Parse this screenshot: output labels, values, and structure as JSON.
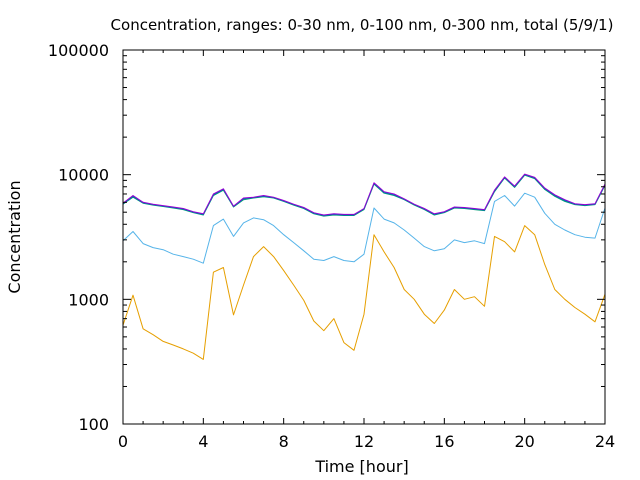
{
  "chart_data": {
    "type": "line",
    "title": "Concentration, ranges: 0-30 nm, 0-100 nm, 0-300 nm, total (5/9/1)",
    "xlabel": "Time [hour]",
    "ylabel": "Concentration",
    "xlim": [
      0,
      24
    ],
    "ylim": [
      100,
      100000
    ],
    "yscale": "log",
    "grid": false,
    "xticks": [
      0,
      4,
      8,
      12,
      16,
      20,
      24
    ],
    "xtick_labels": [
      "0",
      "4",
      "8",
      "12",
      "16",
      "20",
      "24"
    ],
    "yticks": [
      100,
      1000,
      10000,
      100000
    ],
    "ytick_labels": [
      "100",
      "1000",
      "10000",
      "100000"
    ],
    "x": [
      0,
      0.5,
      1,
      1.5,
      2,
      2.5,
      3,
      3.5,
      4,
      4.5,
      5,
      5.5,
      6,
      6.5,
      7,
      7.5,
      8,
      8.5,
      9,
      9.5,
      10,
      10.5,
      11,
      11.5,
      12,
      12.5,
      13,
      13.5,
      14,
      14.5,
      15,
      15.5,
      16,
      16.5,
      17,
      17.5,
      18,
      18.5,
      19,
      19.5,
      20,
      20.5,
      21,
      21.5,
      22,
      22.5,
      23,
      23.5,
      24
    ],
    "series": [
      {
        "color": "#E69F00",
        "values": [
          620,
          1080,
          580,
          520,
          460,
          430,
          400,
          370,
          330,
          1650,
          1800,
          750,
          1300,
          2200,
          2650,
          2200,
          1700,
          1300,
          980,
          670,
          560,
          700,
          450,
          390,
          760,
          3300,
          2400,
          1800,
          1200,
          1000,
          760,
          640,
          820,
          1200,
          1000,
          1050,
          880,
          3200,
          2900,
          2400,
          3900,
          3300,
          1900,
          1200,
          1000,
          860,
          760,
          660,
          1100
        ]
      },
      {
        "color": "#56B4E9",
        "values": [
          2950,
          3500,
          2800,
          2600,
          2500,
          2300,
          2200,
          2100,
          1950,
          3900,
          4400,
          3200,
          4100,
          4500,
          4350,
          3900,
          3300,
          2850,
          2450,
          2100,
          2050,
          2200,
          2050,
          2000,
          2300,
          5400,
          4400,
          4100,
          3600,
          3100,
          2650,
          2450,
          2550,
          3000,
          2850,
          2950,
          2800,
          6100,
          6800,
          5600,
          7100,
          6600,
          4900,
          4000,
          3600,
          3300,
          3150,
          3100,
          5400
        ]
      },
      {
        "color": "#009E73",
        "values": [
          5800,
          6600,
          5900,
          5700,
          5550,
          5400,
          5250,
          4950,
          4750,
          6800,
          7500,
          5500,
          6300,
          6500,
          6650,
          6500,
          6100,
          5700,
          5350,
          4850,
          4650,
          4750,
          4700,
          4700,
          5250,
          8400,
          7100,
          6800,
          6300,
          5700,
          5250,
          4750,
          4950,
          5400,
          5350,
          5250,
          5150,
          7300,
          9400,
          7900,
          9900,
          9300,
          7600,
          6700,
          6100,
          5750,
          5650,
          5750,
          8200
        ]
      },
      {
        "color": "#0072B2",
        "values": [
          5850,
          6700,
          5950,
          5750,
          5600,
          5450,
          5300,
          5000,
          4800,
          6900,
          7600,
          5550,
          6400,
          6550,
          6700,
          6550,
          6150,
          5750,
          5400,
          4900,
          4700,
          4800,
          4750,
          4750,
          5300,
          8500,
          7200,
          6900,
          6350,
          5750,
          5300,
          4800,
          5000,
          5450,
          5400,
          5300,
          5200,
          7400,
          9500,
          8000,
          10000,
          9400,
          7700,
          6800,
          6200,
          5800,
          5700,
          5800,
          8300
        ]
      },
      {
        "color": "#9400D3",
        "values": [
          5900,
          6800,
          6000,
          5800,
          5650,
          5500,
          5350,
          5050,
          4850,
          7000,
          7700,
          5600,
          6500,
          6600,
          6800,
          6600,
          6200,
          5800,
          5450,
          4950,
          4750,
          4850,
          4800,
          4800,
          5350,
          8600,
          7300,
          7000,
          6400,
          5800,
          5350,
          4850,
          5050,
          5500,
          5450,
          5350,
          5250,
          7500,
          9600,
          8100,
          10100,
          9500,
          7800,
          6900,
          6300,
          5850,
          5750,
          5850,
          8400
        ]
      }
    ]
  }
}
